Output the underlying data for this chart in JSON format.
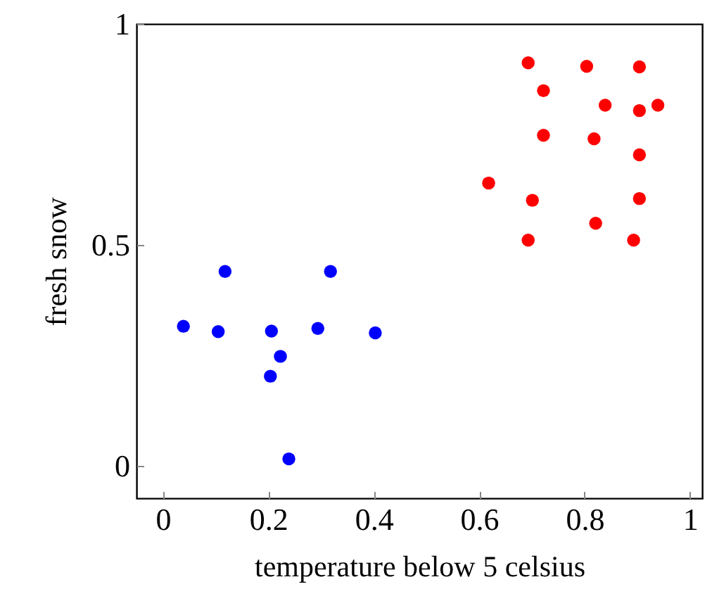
{
  "chart_data": {
    "type": "scatter",
    "xlabel": "temperature below 5 celsius",
    "ylabel": "fresh snow",
    "xlim": [
      -0.05,
      1.023
    ],
    "ylim": [
      -0.073,
      1
    ],
    "xticks": [
      0,
      0.2,
      0.4,
      0.6,
      0.8,
      1
    ],
    "yticks": [
      0,
      0.5,
      1
    ],
    "grid": false,
    "marker": "circle",
    "series": [
      {
        "color": "#0000ff",
        "x": [
          0.039,
          0.118,
          0.105,
          0.206,
          0.223,
          0.204,
          0.239,
          0.294,
          0.318,
          0.403
        ],
        "values": [
          0.316,
          0.44,
          0.304,
          0.305,
          0.248,
          0.203,
          0.016,
          0.311,
          0.44,
          0.301
        ]
      },
      {
        "color": "#ff0000",
        "x": [
          0.693,
          0.804,
          0.904,
          0.722,
          0.839,
          0.904,
          0.939,
          0.722,
          0.818,
          0.904,
          0.618,
          0.701,
          0.904,
          0.821,
          0.693,
          0.893
        ],
        "values": [
          0.912,
          0.904,
          0.903,
          0.849,
          0.816,
          0.804,
          0.816,
          0.748,
          0.74,
          0.704,
          0.64,
          0.601,
          0.605,
          0.549,
          0.511,
          0.511
        ]
      }
    ]
  }
}
